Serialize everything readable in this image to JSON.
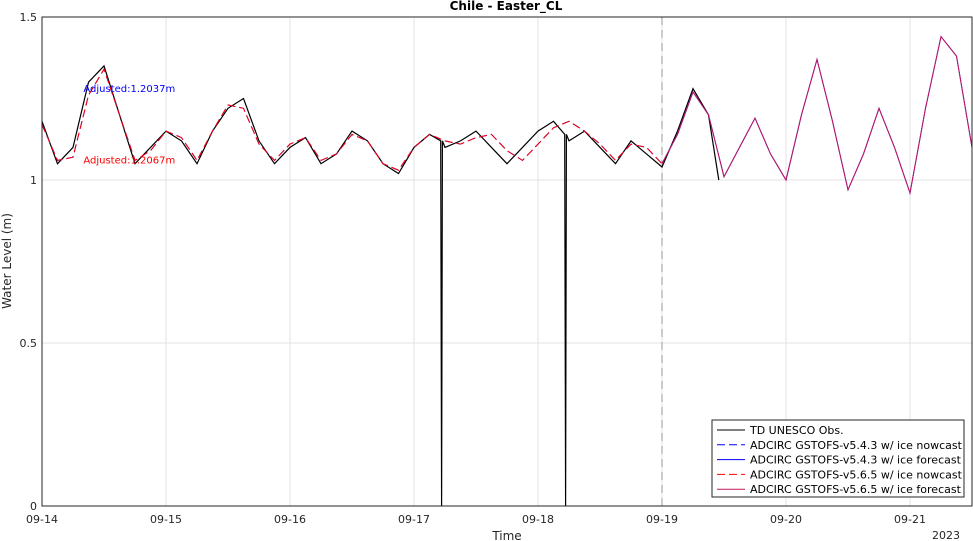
{
  "chart_data": {
    "type": "line",
    "title": "Chile - Easter_CL",
    "xlabel": "Time",
    "ylabel": "Water Level (m)",
    "ylim": [
      0,
      1.5
    ],
    "xlim": [
      "2023-09-14 00:00",
      "2023-09-21 12:00"
    ],
    "x_ticks": [
      "09-14",
      "09-15",
      "09-16",
      "09-17",
      "09-18",
      "09-19",
      "09-20",
      "09-21"
    ],
    "x_tick_year": "2023",
    "y_ticks": [
      "0",
      "0.5",
      "1",
      "1.5"
    ],
    "grid": true,
    "legend_position": "bottom-right",
    "nowcast_forecast_divider": "2023-09-19 00:00",
    "annotations": [
      {
        "text": "Adjusted:1.2037m",
        "color": "#0000ff",
        "x": "2023-09-14 08:00",
        "y": 1.27
      },
      {
        "text": "Adjusted:1.2067m",
        "color": "#ff0000",
        "x": "2023-09-14 08:00",
        "y": 1.05
      }
    ],
    "series": [
      {
        "name": "TD UNESCO Obs.",
        "color": "#000000",
        "style": "solid",
        "x": [
          "2023-09-14 00:00",
          "2023-09-14 03:00",
          "2023-09-14 06:00",
          "2023-09-14 09:00",
          "2023-09-14 12:00",
          "2023-09-14 15:00",
          "2023-09-14 18:00",
          "2023-09-14 21:00",
          "2023-09-15 00:00",
          "2023-09-15 03:00",
          "2023-09-15 06:00",
          "2023-09-15 09:00",
          "2023-09-15 12:00",
          "2023-09-15 15:00",
          "2023-09-15 18:00",
          "2023-09-15 21:00",
          "2023-09-16 00:00",
          "2023-09-16 03:00",
          "2023-09-16 06:00",
          "2023-09-16 09:00",
          "2023-09-16 12:00",
          "2023-09-16 15:00",
          "2023-09-16 18:00",
          "2023-09-16 21:00",
          "2023-09-17 00:00",
          "2023-09-17 03:00",
          "2023-09-17 05:10",
          "2023-09-17 05:20",
          "2023-09-17 05:30",
          "2023-09-17 06:00",
          "2023-09-17 09:00",
          "2023-09-17 12:00",
          "2023-09-17 15:00",
          "2023-09-17 18:00",
          "2023-09-17 21:00",
          "2023-09-18 00:00",
          "2023-09-18 03:00",
          "2023-09-18 05:10",
          "2023-09-18 05:20",
          "2023-09-18 05:30",
          "2023-09-18 06:00",
          "2023-09-18 09:00",
          "2023-09-18 12:00",
          "2023-09-18 15:00",
          "2023-09-18 18:00",
          "2023-09-18 21:00",
          "2023-09-19 00:00",
          "2023-09-19 03:00",
          "2023-09-19 06:00",
          "2023-09-19 09:00",
          "2023-09-19 11:00"
        ],
        "values": [
          1.18,
          1.05,
          1.1,
          1.3,
          1.35,
          1.2,
          1.05,
          1.1,
          1.15,
          1.12,
          1.05,
          1.15,
          1.22,
          1.25,
          1.12,
          1.05,
          1.1,
          1.13,
          1.05,
          1.08,
          1.15,
          1.12,
          1.05,
          1.02,
          1.1,
          1.14,
          1.12,
          0.0,
          1.12,
          1.1,
          1.12,
          1.15,
          1.1,
          1.05,
          1.1,
          1.15,
          1.18,
          1.14,
          0.0,
          1.14,
          1.12,
          1.15,
          1.1,
          1.05,
          1.12,
          1.08,
          1.04,
          1.15,
          1.28,
          1.2,
          1.0
        ]
      },
      {
        "name": "ADCIRC GSTOFS-v5.4.3 w/ ice nowcast",
        "color": "#0000ff",
        "style": "dashed",
        "x": [
          "2023-09-14 00:00",
          "2023-09-14 03:00",
          "2023-09-14 06:00",
          "2023-09-14 09:00",
          "2023-09-14 12:00",
          "2023-09-14 15:00",
          "2023-09-14 18:00",
          "2023-09-14 21:00",
          "2023-09-15 00:00",
          "2023-09-15 03:00",
          "2023-09-15 06:00",
          "2023-09-15 09:00",
          "2023-09-15 12:00",
          "2023-09-15 15:00",
          "2023-09-15 18:00",
          "2023-09-15 21:00",
          "2023-09-16 00:00",
          "2023-09-16 03:00",
          "2023-09-16 06:00",
          "2023-09-16 09:00",
          "2023-09-16 12:00",
          "2023-09-16 15:00",
          "2023-09-16 18:00",
          "2023-09-16 21:00",
          "2023-09-17 00:00",
          "2023-09-17 03:00",
          "2023-09-17 06:00",
          "2023-09-17 09:00",
          "2023-09-17 12:00",
          "2023-09-17 15:00",
          "2023-09-17 18:00",
          "2023-09-17 21:00",
          "2023-09-18 00:00",
          "2023-09-18 03:00",
          "2023-09-18 06:00",
          "2023-09-18 09:00",
          "2023-09-18 12:00",
          "2023-09-18 15:00",
          "2023-09-18 18:00",
          "2023-09-18 21:00",
          "2023-09-19 00:00"
        ],
        "values": [
          1.17,
          1.06,
          1.07,
          1.26,
          1.34,
          1.2,
          1.06,
          1.09,
          1.15,
          1.13,
          1.06,
          1.15,
          1.23,
          1.22,
          1.11,
          1.06,
          1.11,
          1.13,
          1.06,
          1.08,
          1.14,
          1.12,
          1.05,
          1.03,
          1.1,
          1.14,
          1.12,
          1.11,
          1.13,
          1.14,
          1.09,
          1.06,
          1.11,
          1.16,
          1.18,
          1.15,
          1.11,
          1.06,
          1.11,
          1.1,
          1.05
        ]
      },
      {
        "name": "ADCIRC GSTOFS-v5.4.3 w/ ice forecast",
        "color": "#0000ff",
        "style": "solid",
        "x": [
          "2023-09-19 00:00",
          "2023-09-19 03:00",
          "2023-09-19 06:00",
          "2023-09-19 09:00",
          "2023-09-19 12:00",
          "2023-09-19 15:00",
          "2023-09-19 18:00",
          "2023-09-19 21:00",
          "2023-09-20 00:00",
          "2023-09-20 03:00",
          "2023-09-20 06:00",
          "2023-09-20 09:00",
          "2023-09-20 12:00",
          "2023-09-20 15:00",
          "2023-09-20 18:00",
          "2023-09-20 21:00",
          "2023-09-21 00:00",
          "2023-09-21 03:00",
          "2023-09-21 06:00",
          "2023-09-21 09:00",
          "2023-09-21 12:00"
        ],
        "values": [
          1.05,
          1.14,
          1.27,
          1.2,
          1.01,
          1.1,
          1.19,
          1.08,
          1.0,
          1.2,
          1.37,
          1.18,
          0.97,
          1.08,
          1.22,
          1.1,
          0.96,
          1.22,
          1.44,
          1.38,
          1.1
        ]
      },
      {
        "name": "ADCIRC GSTOFS-v5.6.5 w/ ice nowcast",
        "color": "#ff0000",
        "style": "dashed",
        "x": [
          "2023-09-14 00:00",
          "2023-09-14 03:00",
          "2023-09-14 06:00",
          "2023-09-14 09:00",
          "2023-09-14 12:00",
          "2023-09-14 15:00",
          "2023-09-14 18:00",
          "2023-09-14 21:00",
          "2023-09-15 00:00",
          "2023-09-15 03:00",
          "2023-09-15 06:00",
          "2023-09-15 09:00",
          "2023-09-15 12:00",
          "2023-09-15 15:00",
          "2023-09-15 18:00",
          "2023-09-15 21:00",
          "2023-09-16 00:00",
          "2023-09-16 03:00",
          "2023-09-16 06:00",
          "2023-09-16 09:00",
          "2023-09-16 12:00",
          "2023-09-16 15:00",
          "2023-09-16 18:00",
          "2023-09-16 21:00",
          "2023-09-17 00:00",
          "2023-09-17 03:00",
          "2023-09-17 06:00",
          "2023-09-17 09:00",
          "2023-09-17 12:00",
          "2023-09-17 15:00",
          "2023-09-17 18:00",
          "2023-09-17 21:00",
          "2023-09-18 00:00",
          "2023-09-18 03:00",
          "2023-09-18 06:00",
          "2023-09-18 09:00",
          "2023-09-18 12:00",
          "2023-09-18 15:00",
          "2023-09-18 18:00",
          "2023-09-18 21:00",
          "2023-09-19 00:00"
        ],
        "values": [
          1.17,
          1.06,
          1.07,
          1.26,
          1.34,
          1.2,
          1.06,
          1.09,
          1.15,
          1.13,
          1.06,
          1.15,
          1.23,
          1.22,
          1.11,
          1.06,
          1.11,
          1.13,
          1.06,
          1.08,
          1.14,
          1.12,
          1.05,
          1.03,
          1.1,
          1.14,
          1.12,
          1.11,
          1.13,
          1.14,
          1.09,
          1.06,
          1.11,
          1.16,
          1.18,
          1.15,
          1.11,
          1.06,
          1.11,
          1.1,
          1.05
        ]
      },
      {
        "name": "ADCIRC GSTOFS-v5.6.5 w/ ice forecast",
        "color": "#c2185b",
        "style": "solid",
        "x": [
          "2023-09-19 00:00",
          "2023-09-19 03:00",
          "2023-09-19 06:00",
          "2023-09-19 09:00",
          "2023-09-19 12:00",
          "2023-09-19 15:00",
          "2023-09-19 18:00",
          "2023-09-19 21:00",
          "2023-09-20 00:00",
          "2023-09-20 03:00",
          "2023-09-20 06:00",
          "2023-09-20 09:00",
          "2023-09-20 12:00",
          "2023-09-20 15:00",
          "2023-09-20 18:00",
          "2023-09-20 21:00",
          "2023-09-21 00:00",
          "2023-09-21 03:00",
          "2023-09-21 06:00",
          "2023-09-21 09:00",
          "2023-09-21 12:00"
        ],
        "values": [
          1.05,
          1.14,
          1.27,
          1.2,
          1.01,
          1.1,
          1.19,
          1.08,
          1.0,
          1.2,
          1.37,
          1.18,
          0.97,
          1.08,
          1.22,
          1.1,
          0.96,
          1.22,
          1.44,
          1.38,
          1.1
        ]
      }
    ]
  }
}
